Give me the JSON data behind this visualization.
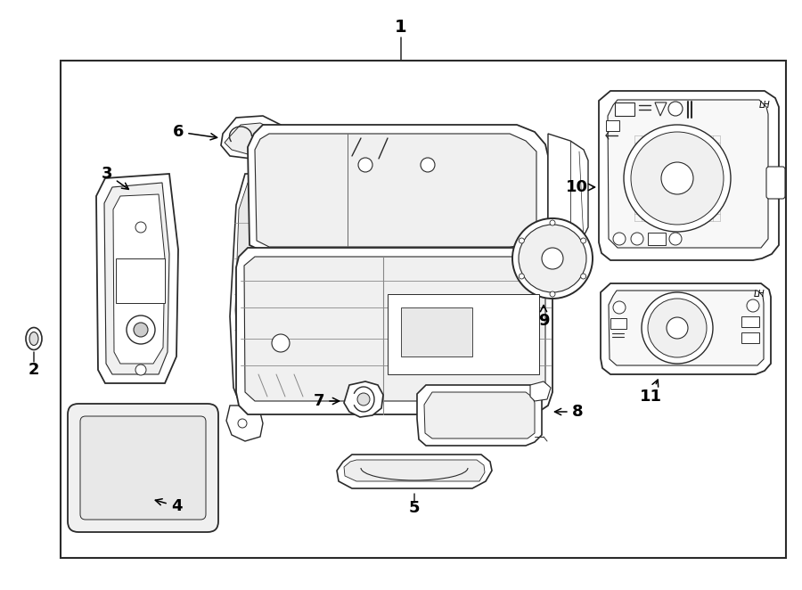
{
  "bg_color": "#ffffff",
  "line_color": "#2a2a2a",
  "fig_width": 9.0,
  "fig_height": 6.62,
  "dpi": 100,
  "labels": [
    "1",
    "2",
    "3",
    "4",
    "5",
    "6",
    "7",
    "8",
    "9",
    "10",
    "11"
  ]
}
